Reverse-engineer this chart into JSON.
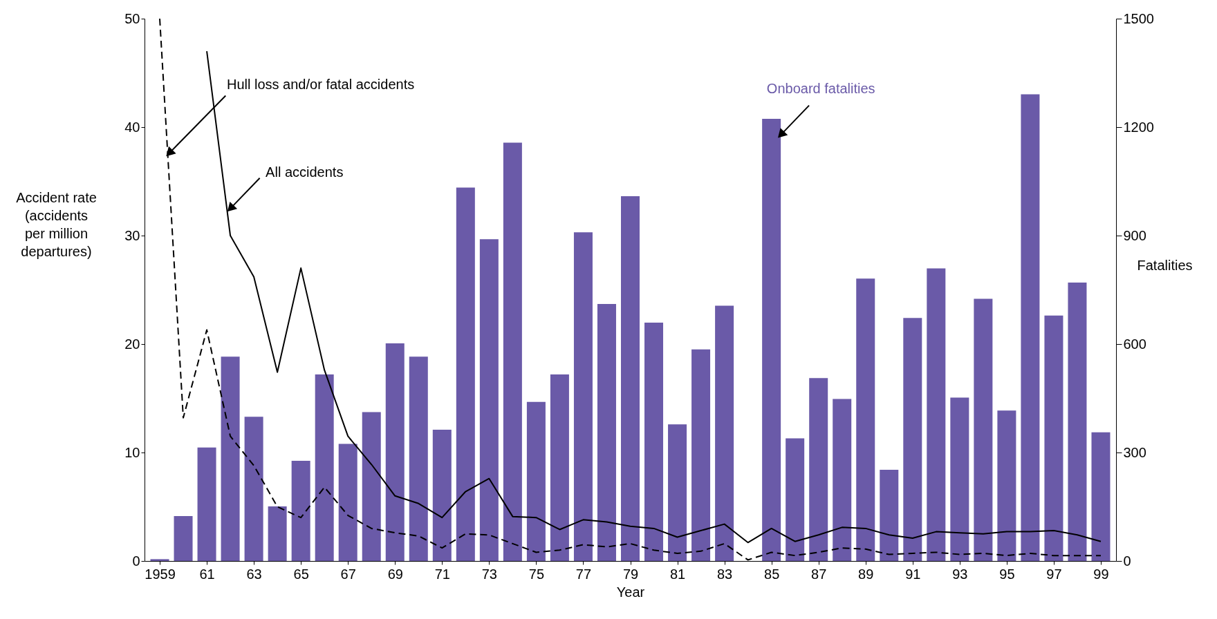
{
  "chart_data": {
    "type": "bar",
    "xlabel": "Year",
    "ylabel": "Accident rate (accidents per million departures)",
    "y2label": "Fatalities",
    "x": [
      1959,
      1960,
      1961,
      1962,
      1963,
      1964,
      1965,
      1966,
      1967,
      1968,
      1969,
      1970,
      1971,
      1972,
      1973,
      1974,
      1975,
      1976,
      1977,
      1978,
      1979,
      1980,
      1981,
      1982,
      1983,
      1984,
      1985,
      1986,
      1987,
      1988,
      1989,
      1990,
      1991,
      1992,
      1993,
      1994,
      1995,
      1996,
      1997,
      1998,
      1999
    ],
    "xlim": [
      1958.5,
      1999.5
    ],
    "xticks": [
      1959,
      {
        "value": 1961,
        "label": "61"
      },
      {
        "value": 1963,
        "label": "63"
      },
      {
        "value": 1965,
        "label": "65"
      },
      {
        "value": 1967,
        "label": "67"
      },
      {
        "value": 1969,
        "label": "69"
      },
      {
        "value": 1971,
        "label": "71"
      },
      {
        "value": 1973,
        "label": "73"
      },
      {
        "value": 1975,
        "label": "75"
      },
      {
        "value": 1977,
        "label": "77"
      },
      {
        "value": 1979,
        "label": "79"
      },
      {
        "value": 1981,
        "label": "81"
      },
      {
        "value": 1983,
        "label": "83"
      },
      {
        "value": 1985,
        "label": "85"
      },
      {
        "value": 1987,
        "label": "87"
      },
      {
        "value": 1989,
        "label": "89"
      },
      {
        "value": 1991,
        "label": "91"
      },
      {
        "value": 1993,
        "label": "93"
      },
      {
        "value": 1995,
        "label": "95"
      },
      {
        "value": 1997,
        "label": "97"
      },
      {
        "value": 1999,
        "label": "99"
      }
    ],
    "ylim": [
      0,
      50
    ],
    "yticks": [
      0,
      10,
      20,
      30,
      40,
      50
    ],
    "y2lim": [
      0,
      1500
    ],
    "y2ticks": [
      0,
      300,
      600,
      900,
      1200,
      1500
    ],
    "series": [
      {
        "name": "Onboard fatalities",
        "axis": "y2",
        "color": "#6a5aa8",
        "values": [
          5,
          124,
          314,
          565,
          399,
          151,
          277,
          516,
          324,
          412,
          602,
          565,
          363,
          1033,
          890,
          1157,
          440,
          516,
          909,
          711,
          1009,
          659,
          378,
          585,
          706,
          0,
          1223,
          339,
          506,
          448,
          781,
          252,
          672,
          809,
          452,
          725,
          416,
          1291,
          679,
          770,
          356
        ]
      },
      {
        "name": "Hull loss and/or fatal accidents",
        "type": "line",
        "axis": "y",
        "color": "#000000",
        "line_style": "dashed",
        "values": [
          50,
          13.2,
          21.3,
          11.5,
          8.8,
          5.0,
          4.0,
          6.8,
          4.2,
          3.0,
          2.6,
          2.3,
          1.2,
          2.5,
          2.4,
          1.6,
          0.8,
          1.0,
          1.5,
          1.3,
          1.6,
          1.0,
          0.7,
          0.9,
          1.6,
          0.1,
          0.8,
          0.5,
          0.8,
          1.2,
          1.1,
          0.6,
          0.7,
          0.8,
          0.6,
          0.7,
          0.5,
          0.7,
          0.5,
          0.5,
          0.5
        ]
      },
      {
        "name": "All accidents",
        "type": "line",
        "axis": "y",
        "color": "#000000",
        "line_style": "solid",
        "values": [
          null,
          null,
          47,
          30.0,
          26.2,
          17.4,
          27.0,
          17.6,
          11.5,
          8.9,
          6.0,
          5.3,
          4.0,
          6.4,
          7.6,
          4.1,
          4.0,
          2.9,
          3.8,
          3.6,
          3.2,
          3.0,
          2.2,
          2.8,
          3.4,
          1.7,
          3.0,
          1.8,
          2.4,
          3.1,
          3.0,
          2.4,
          2.1,
          2.7,
          2.6,
          2.5,
          2.7,
          2.7,
          2.8,
          2.4,
          1.8
        ]
      }
    ],
    "grid": false
  }
}
